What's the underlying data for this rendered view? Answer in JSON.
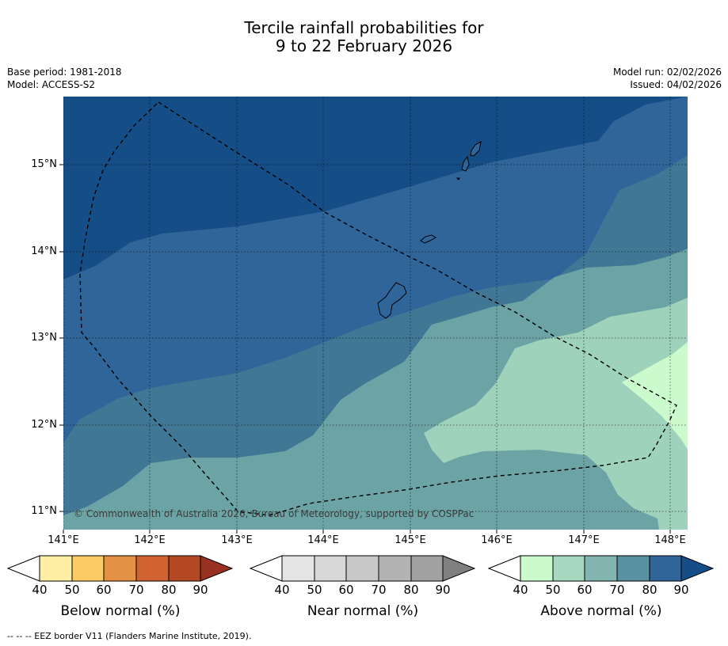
{
  "title": {
    "line1": "Tercile rainfall probabilities for",
    "line2": "9 to 22 February 2026"
  },
  "meta": {
    "base_period": "Base period: 1981-2018",
    "model": "Model: ACCESS-S2",
    "model_run": "Model run: 02/02/2026",
    "issued": "Issued: 04/02/2026"
  },
  "map": {
    "copyright": "© Commonwealth of Australia 2026, Bureau of Meteorology, supported by COSPPac",
    "latitude_labels": [
      "15°N",
      "14°N",
      "13°N",
      "12°N",
      "11°N"
    ],
    "longitude_labels": [
      "141°E",
      "142°E",
      "143°E",
      "144°E",
      "145°E",
      "146°E",
      "147°E",
      "148°E"
    ],
    "colors": {
      "above_90": "#154e86",
      "above_80": "#306599",
      "above_70": "#3f7795",
      "above_60": "#6ca4a6",
      "above_50": "#9fd2bb",
      "above_40": "#cbfbcd"
    }
  },
  "colorbars": {
    "tick_labels": [
      "40",
      "50",
      "60",
      "70",
      "80",
      "90"
    ],
    "below": {
      "label": "Below normal (%)",
      "colors": [
        "#fdeea4",
        "#fdca65",
        "#e49145",
        "#d06331",
        "#b54926",
        "#983121"
      ]
    },
    "near": {
      "label": "Near normal (%)",
      "colors": [
        "#e4e4e4",
        "#d7d7d7",
        "#c8c8c8",
        "#b3b3b3",
        "#a1a1a1",
        "#808080"
      ]
    },
    "above": {
      "label": "Above normal (%)",
      "colors": [
        "#cbfbcd",
        "#a7d8bf",
        "#83b6b0",
        "#5991a2",
        "#306599",
        "#154e86"
      ]
    }
  },
  "footnote": "--  --  -- EEZ border V11 (Flanders Marine Institute, 2019)."
}
